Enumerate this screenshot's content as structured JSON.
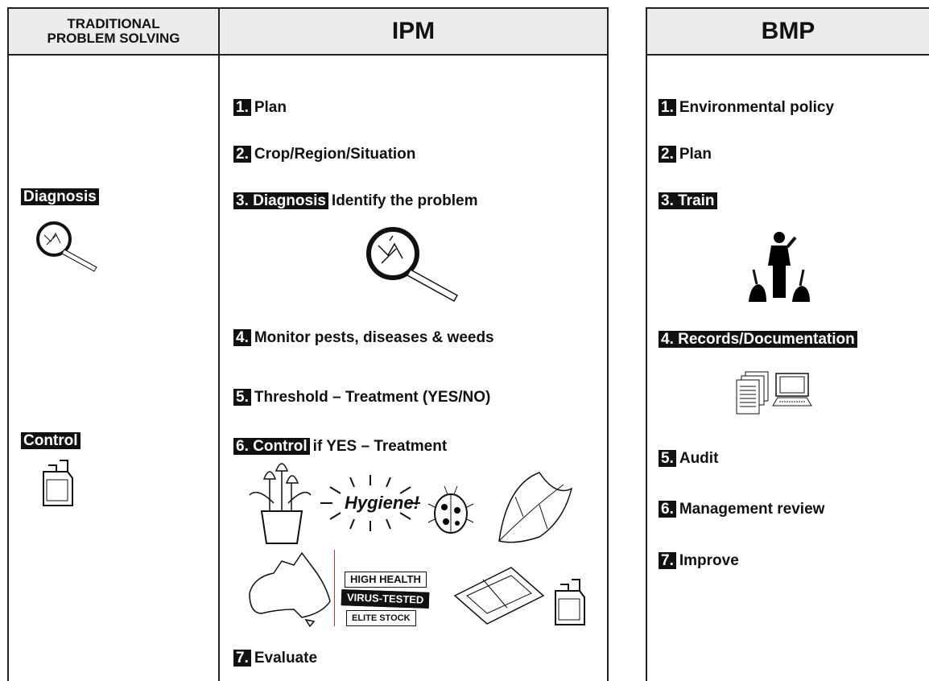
{
  "columns": {
    "traditional": {
      "title_lines": [
        "TRADITIONAL",
        "PROBLEM SOLVING"
      ],
      "items": [
        {
          "marker": "Diagnosis"
        },
        {
          "marker": "Control"
        }
      ]
    },
    "ipm": {
      "title": "IPM",
      "items": [
        {
          "marker": "1.",
          "text": "Plan"
        },
        {
          "marker": "2.",
          "text": "Crop/Region/Situation"
        },
        {
          "marker": "3. Diagnosis",
          "text": "Identify the problem"
        },
        {
          "marker": "4.",
          "text": "Monitor pests, diseases & weeds"
        },
        {
          "marker": "5.",
          "text": "Threshold – Treatment (YES/NO)"
        },
        {
          "marker": "6. Control",
          "text": "if YES – Treatment"
        },
        {
          "marker": "7.",
          "text": "Evaluate"
        }
      ],
      "illustration_texts": {
        "hygiene": "Hygiene!",
        "tags": [
          "HIGH HEALTH",
          "VIRUS-TESTED",
          "ELITE STOCK"
        ]
      }
    },
    "bmp": {
      "title": "BMP",
      "items": [
        {
          "marker": "1.",
          "text": "Environmental policy"
        },
        {
          "marker": "2.",
          "text": "Plan"
        },
        {
          "marker": "3. Train"
        },
        {
          "marker": "4. Records/Documentation"
        },
        {
          "marker": "5.",
          "text": "Audit"
        },
        {
          "marker": "6.",
          "text": "Management review"
        },
        {
          "marker": "7.",
          "text": "Improve"
        }
      ]
    }
  }
}
